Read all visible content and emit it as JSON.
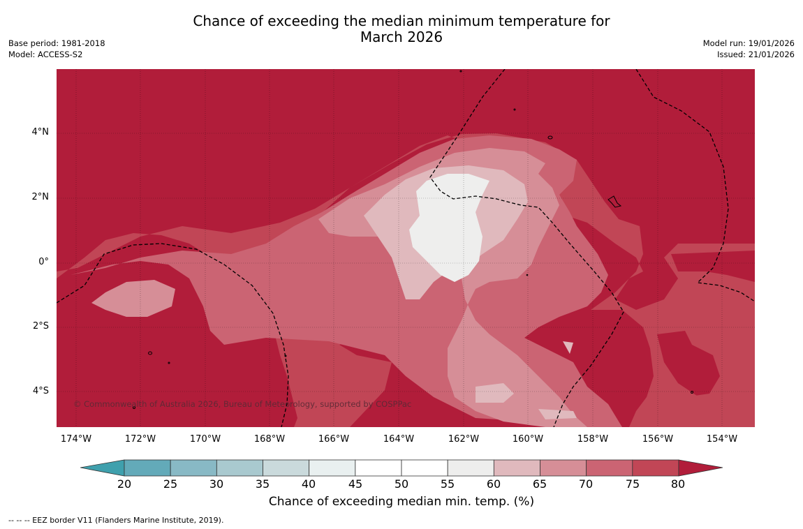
{
  "header": {
    "title_line1": "Chance of exceeding the median minimum temperature for",
    "title_line2": "March 2026",
    "base_period": "Base period: 1981-2018",
    "model": "Model: ACCESS-S2",
    "model_run": "Model run: 19/01/2026",
    "issued": "Issued: 21/01/2026"
  },
  "map": {
    "copyright": "© Commonwealth of Australia 2026, Bureau of Meteorology, supported by COSPPac",
    "lat_labels": [
      "4°N",
      "2°N",
      "0°",
      "2°S",
      "4°S"
    ],
    "lon_labels": [
      "174°W",
      "172°W",
      "170°W",
      "168°W",
      "166°W",
      "164°W",
      "162°W",
      "160°W",
      "158°W",
      "156°W",
      "154°W"
    ],
    "colors": {
      "gt80": "#b11d3a",
      "75_80": "#c14656",
      "70_75": "#cb6473",
      "65_70": "#d68e97",
      "60_65": "#e0b9bd",
      "55_60": "#eeeeed"
    }
  },
  "colorbar": {
    "ticks": [
      "20",
      "25",
      "30",
      "35",
      "40",
      "45",
      "50",
      "55",
      "60",
      "65",
      "70",
      "75",
      "80"
    ],
    "label": "Chance of exceeding median min. temp. (%)",
    "below_color": "#3fa0ad",
    "above_color": "#b11d3a",
    "colors": [
      "#63aab9",
      "#88b9c5",
      "#a9c9cf",
      "#cadadc",
      "#e9f0f0",
      "#ffffff",
      "#ffffff",
      "#eeeeed",
      "#e0b9bd",
      "#d68e97",
      "#cb6473",
      "#c14656"
    ]
  },
  "legend": {
    "eez": "--  --  -- EEZ border V11 (Flanders Marine Institute, 2019)."
  }
}
